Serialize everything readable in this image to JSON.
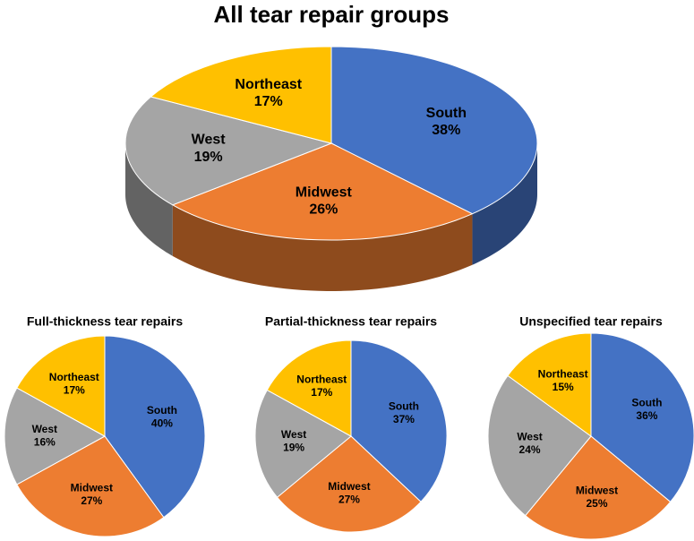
{
  "chart_data": [
    {
      "type": "pie",
      "title": "All tear repair groups",
      "3d": true,
      "categories": [
        "South",
        "Midwest",
        "West",
        "Northeast"
      ],
      "values": [
        38,
        26,
        19,
        17
      ],
      "value_labels": [
        "38%",
        "26%",
        "19%",
        "17%"
      ],
      "colors": [
        "#4472c4",
        "#ed7d31",
        "#a5a5a5",
        "#ffc000"
      ]
    },
    {
      "type": "pie",
      "title": "Full-thickness tear repairs",
      "categories": [
        "South",
        "Midwest",
        "West",
        "Northeast"
      ],
      "values": [
        40,
        27,
        16,
        17
      ],
      "value_labels": [
        "40%",
        "27%",
        "16%",
        "17%"
      ],
      "colors": [
        "#4472c4",
        "#ed7d31",
        "#a5a5a5",
        "#ffc000"
      ]
    },
    {
      "type": "pie",
      "title": "Partial-thickness tear repairs",
      "categories": [
        "South",
        "Midwest",
        "West",
        "Northeast"
      ],
      "values": [
        37,
        27,
        19,
        17
      ],
      "value_labels": [
        "37%",
        "27%",
        "19%",
        "17%"
      ],
      "colors": [
        "#4472c4",
        "#ed7d31",
        "#a5a5a5",
        "#ffc000"
      ]
    },
    {
      "type": "pie",
      "title": "Unspecified tear repairs",
      "categories": [
        "South",
        "Midwest",
        "West",
        "Northeast"
      ],
      "values": [
        36,
        25,
        24,
        15
      ],
      "value_labels": [
        "36%",
        "25%",
        "24%",
        "15%"
      ],
      "colors": [
        "#4472c4",
        "#ed7d31",
        "#a5a5a5",
        "#ffc000"
      ]
    }
  ]
}
